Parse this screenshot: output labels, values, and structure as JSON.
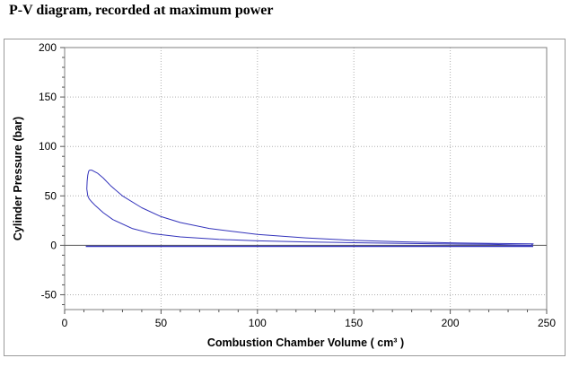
{
  "page": {
    "title": "P-V diagram, recorded at maximum power"
  },
  "chart_data": {
    "type": "line",
    "title": "P-V diagram, recorded at maximum power",
    "xlabel": "Combustion Chamber Volume ( cm³ )",
    "ylabel": "Cylinder Pressure (bar)",
    "xlim": [
      0,
      250
    ],
    "ylim": [
      -65,
      200
    ],
    "xticks": [
      0,
      50,
      100,
      150,
      200,
      250
    ],
    "yticks": [
      -50,
      0,
      50,
      100,
      150,
      200
    ],
    "grid": true,
    "line_color": "#3333bb",
    "series": [
      {
        "closed": true,
        "x": [
          12,
          11.5,
          11.7,
          12,
          12.5,
          13,
          14,
          15,
          17,
          20,
          24,
          30,
          40,
          50,
          60,
          75,
          100,
          125,
          150,
          175,
          200,
          225,
          243,
          242,
          220,
          200,
          175,
          150,
          125,
          100,
          80,
          60,
          45,
          35,
          25,
          20,
          16,
          14,
          12.7,
          12
        ],
        "y": [
          50,
          57,
          65,
          71,
          75,
          76,
          76,
          75,
          73,
          68,
          60,
          50,
          38,
          29,
          23,
          17,
          11,
          7.5,
          5,
          3.5,
          2.5,
          1.8,
          1.5,
          0,
          1,
          1.3,
          2,
          2.6,
          3.4,
          4.5,
          6,
          8.5,
          12,
          17,
          26,
          33,
          40,
          44,
          47,
          50
        ]
      },
      {
        "x": [
          11,
          50,
          100,
          150,
          200,
          243
        ],
        "y": [
          -1,
          -1,
          -1,
          -1,
          -1,
          -1
        ]
      }
    ]
  }
}
